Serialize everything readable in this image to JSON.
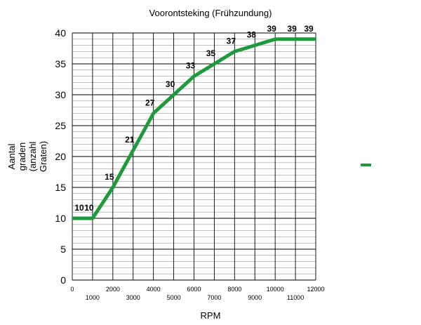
{
  "chart_data": {
    "type": "line",
    "title": "Voorontsteking (Frühzundung)",
    "xlabel": "RPM",
    "ylabel_lines": [
      "Aantal",
      "graden",
      "(anzahl",
      "Graten)"
    ],
    "x": [
      0,
      1000,
      2000,
      3000,
      4000,
      5000,
      6000,
      7000,
      8000,
      9000,
      10000,
      11000,
      12000
    ],
    "xtick_labels": [
      "0",
      "1000",
      "2000",
      "3000",
      "4000",
      "5000",
      "6000",
      "7000",
      "8000",
      "9000",
      "10000",
      "11000",
      "12000"
    ],
    "yticks": [
      0,
      5,
      10,
      15,
      20,
      25,
      30,
      35,
      40
    ],
    "xlim": [
      0,
      12000
    ],
    "ylim": [
      0,
      40
    ],
    "grid": true,
    "legend": "right",
    "series": [
      {
        "values": [
          10,
          10,
          15,
          21,
          27,
          30,
          33,
          35,
          37,
          38,
          39,
          39,
          39
        ],
        "data_labels": [
          "10",
          "10",
          "15",
          "21",
          "27",
          "30",
          "33",
          "35",
          "37",
          "38",
          "39",
          "39",
          "39"
        ],
        "color": "#1e9a3c"
      }
    ]
  }
}
